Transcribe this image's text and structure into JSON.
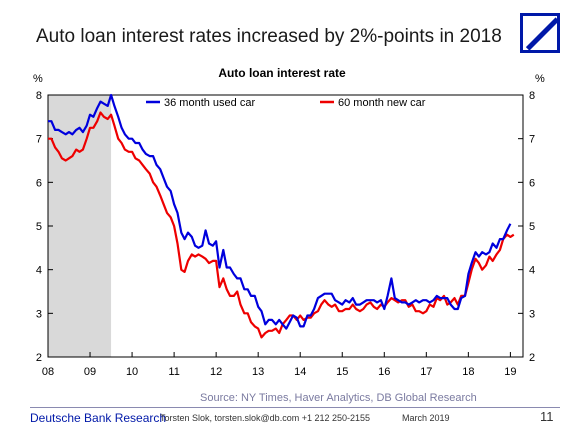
{
  "header": {
    "headline": "Auto loan interest rates increased by 2%-points in 2018",
    "logo": "deutsche-bank-logo"
  },
  "footer": {
    "source": "Source: NY Times, Haver Analytics, DB Global Research",
    "brand": "Deutsche Bank Research",
    "contact": "Torsten Slok, torsten.slok@db.com  +1 212 250-2155",
    "date": "March 2019",
    "page": "11"
  },
  "colors": {
    "series_36m": "#0000dd",
    "series_60m": "#ee0000",
    "shade": "#d9d9d9",
    "brand": "#0018a8"
  },
  "chart_data": {
    "type": "line",
    "title": "Auto loan interest rate",
    "left_unit": "%",
    "right_unit": "%",
    "xlim": [
      2008.0,
      2019.3
    ],
    "ylim": [
      2,
      8
    ],
    "yticks": [
      2,
      3,
      4,
      5,
      6,
      7,
      8
    ],
    "xticks": [
      {
        "value": 2008,
        "label": "08"
      },
      {
        "value": 2009,
        "label": "09"
      },
      {
        "value": 2010,
        "label": "10"
      },
      {
        "value": 2011,
        "label": "11"
      },
      {
        "value": 2012,
        "label": "12"
      },
      {
        "value": 2013,
        "label": "13"
      },
      {
        "value": 2014,
        "label": "14"
      },
      {
        "value": 2015,
        "label": "15"
      },
      {
        "value": 2016,
        "label": "16"
      },
      {
        "value": 2017,
        "label": "17"
      },
      {
        "value": 2018,
        "label": "18"
      },
      {
        "value": 2019,
        "label": "19"
      }
    ],
    "shaded_region": [
      2008.0,
      2009.5
    ],
    "grid": false,
    "legend": "top",
    "series": [
      {
        "name": "36 month used car",
        "color": "#0000dd",
        "points": [
          [
            2008.0,
            7.4
          ],
          [
            2008.08,
            7.4
          ],
          [
            2008.17,
            7.2
          ],
          [
            2008.25,
            7.2
          ],
          [
            2008.33,
            7.15
          ],
          [
            2008.42,
            7.1
          ],
          [
            2008.5,
            7.15
          ],
          [
            2008.58,
            7.1
          ],
          [
            2008.67,
            7.2
          ],
          [
            2008.75,
            7.25
          ],
          [
            2008.83,
            7.15
          ],
          [
            2008.92,
            7.3
          ],
          [
            2009.0,
            7.55
          ],
          [
            2009.08,
            7.5
          ],
          [
            2009.17,
            7.7
          ],
          [
            2009.25,
            7.85
          ],
          [
            2009.33,
            7.8
          ],
          [
            2009.42,
            7.75
          ],
          [
            2009.5,
            8.0
          ],
          [
            2009.58,
            7.75
          ],
          [
            2009.67,
            7.5
          ],
          [
            2009.75,
            7.25
          ],
          [
            2009.83,
            7.1
          ],
          [
            2009.92,
            7.0
          ],
          [
            2010.0,
            7.0
          ],
          [
            2010.08,
            6.9
          ],
          [
            2010.17,
            6.9
          ],
          [
            2010.25,
            6.75
          ],
          [
            2010.33,
            6.65
          ],
          [
            2010.42,
            6.6
          ],
          [
            2010.5,
            6.6
          ],
          [
            2010.58,
            6.4
          ],
          [
            2010.67,
            6.3
          ],
          [
            2010.75,
            6.1
          ],
          [
            2010.83,
            5.9
          ],
          [
            2010.92,
            5.8
          ],
          [
            2011.0,
            5.5
          ],
          [
            2011.08,
            5.3
          ],
          [
            2011.17,
            4.85
          ],
          [
            2011.25,
            4.7
          ],
          [
            2011.33,
            4.85
          ],
          [
            2011.42,
            4.75
          ],
          [
            2011.5,
            4.55
          ],
          [
            2011.58,
            4.5
          ],
          [
            2011.67,
            4.55
          ],
          [
            2011.75,
            4.9
          ],
          [
            2011.83,
            4.6
          ],
          [
            2011.92,
            4.55
          ],
          [
            2012.0,
            4.65
          ],
          [
            2012.08,
            4.05
          ],
          [
            2012.17,
            4.45
          ],
          [
            2012.25,
            4.05
          ],
          [
            2012.33,
            4.05
          ],
          [
            2012.42,
            3.9
          ],
          [
            2012.5,
            3.8
          ],
          [
            2012.58,
            3.8
          ],
          [
            2012.67,
            3.55
          ],
          [
            2012.75,
            3.55
          ],
          [
            2012.83,
            3.4
          ],
          [
            2012.92,
            3.4
          ],
          [
            2013.0,
            3.15
          ],
          [
            2013.08,
            3.05
          ],
          [
            2013.17,
            2.75
          ],
          [
            2013.25,
            2.85
          ],
          [
            2013.33,
            2.85
          ],
          [
            2013.42,
            2.75
          ],
          [
            2013.5,
            2.85
          ],
          [
            2013.58,
            2.75
          ],
          [
            2013.67,
            2.65
          ],
          [
            2013.75,
            2.8
          ],
          [
            2013.83,
            2.95
          ],
          [
            2013.92,
            2.9
          ],
          [
            2014.0,
            2.7
          ],
          [
            2014.08,
            2.7
          ],
          [
            2014.17,
            2.95
          ],
          [
            2014.25,
            2.95
          ],
          [
            2014.33,
            3.1
          ],
          [
            2014.42,
            3.35
          ],
          [
            2014.5,
            3.4
          ],
          [
            2014.58,
            3.45
          ],
          [
            2014.67,
            3.45
          ],
          [
            2014.75,
            3.45
          ],
          [
            2014.83,
            3.3
          ],
          [
            2014.92,
            3.25
          ],
          [
            2015.0,
            3.2
          ],
          [
            2015.08,
            3.3
          ],
          [
            2015.17,
            3.25
          ],
          [
            2015.25,
            3.35
          ],
          [
            2015.33,
            3.2
          ],
          [
            2015.42,
            3.2
          ],
          [
            2015.5,
            3.25
          ],
          [
            2015.58,
            3.3
          ],
          [
            2015.67,
            3.3
          ],
          [
            2015.75,
            3.3
          ],
          [
            2015.83,
            3.25
          ],
          [
            2015.92,
            3.3
          ],
          [
            2016.0,
            3.1
          ],
          [
            2016.08,
            3.4
          ],
          [
            2016.17,
            3.8
          ],
          [
            2016.25,
            3.35
          ],
          [
            2016.33,
            3.3
          ],
          [
            2016.42,
            3.25
          ],
          [
            2016.5,
            3.25
          ],
          [
            2016.58,
            3.2
          ],
          [
            2016.67,
            3.25
          ],
          [
            2016.75,
            3.3
          ],
          [
            2016.83,
            3.25
          ],
          [
            2016.92,
            3.3
          ],
          [
            2017.0,
            3.3
          ],
          [
            2017.08,
            3.25
          ],
          [
            2017.17,
            3.3
          ],
          [
            2017.25,
            3.4
          ],
          [
            2017.33,
            3.35
          ],
          [
            2017.42,
            3.35
          ],
          [
            2017.5,
            3.35
          ],
          [
            2017.58,
            3.2
          ],
          [
            2017.67,
            3.1
          ],
          [
            2017.75,
            3.1
          ],
          [
            2017.83,
            3.35
          ],
          [
            2017.92,
            3.4
          ],
          [
            2018.0,
            3.9
          ],
          [
            2018.08,
            4.15
          ],
          [
            2018.17,
            4.4
          ],
          [
            2018.25,
            4.3
          ],
          [
            2018.33,
            4.4
          ],
          [
            2018.42,
            4.35
          ],
          [
            2018.5,
            4.4
          ],
          [
            2018.58,
            4.6
          ],
          [
            2018.67,
            4.5
          ],
          [
            2018.75,
            4.7
          ],
          [
            2018.83,
            4.7
          ],
          [
            2018.92,
            4.9
          ],
          [
            2019.0,
            5.05
          ]
        ]
      },
      {
        "name": "60 month new car",
        "color": "#ee0000",
        "points": [
          [
            2008.0,
            7.0
          ],
          [
            2008.08,
            7.0
          ],
          [
            2008.17,
            6.8
          ],
          [
            2008.25,
            6.7
          ],
          [
            2008.33,
            6.55
          ],
          [
            2008.42,
            6.5
          ],
          [
            2008.5,
            6.55
          ],
          [
            2008.58,
            6.6
          ],
          [
            2008.67,
            6.75
          ],
          [
            2008.75,
            6.7
          ],
          [
            2008.83,
            6.75
          ],
          [
            2008.92,
            7.0
          ],
          [
            2009.0,
            7.25
          ],
          [
            2009.08,
            7.25
          ],
          [
            2009.17,
            7.4
          ],
          [
            2009.25,
            7.6
          ],
          [
            2009.33,
            7.5
          ],
          [
            2009.42,
            7.45
          ],
          [
            2009.5,
            7.55
          ],
          [
            2009.58,
            7.3
          ],
          [
            2009.67,
            7.0
          ],
          [
            2009.75,
            6.9
          ],
          [
            2009.83,
            6.75
          ],
          [
            2009.92,
            6.7
          ],
          [
            2010.0,
            6.7
          ],
          [
            2010.08,
            6.55
          ],
          [
            2010.17,
            6.5
          ],
          [
            2010.25,
            6.4
          ],
          [
            2010.33,
            6.3
          ],
          [
            2010.42,
            6.2
          ],
          [
            2010.5,
            6.0
          ],
          [
            2010.58,
            5.9
          ],
          [
            2010.67,
            5.7
          ],
          [
            2010.75,
            5.5
          ],
          [
            2010.83,
            5.3
          ],
          [
            2010.92,
            5.2
          ],
          [
            2011.0,
            5.0
          ],
          [
            2011.08,
            4.6
          ],
          [
            2011.17,
            4.0
          ],
          [
            2011.25,
            3.95
          ],
          [
            2011.33,
            4.2
          ],
          [
            2011.42,
            4.35
          ],
          [
            2011.5,
            4.3
          ],
          [
            2011.58,
            4.35
          ],
          [
            2011.67,
            4.3
          ],
          [
            2011.75,
            4.25
          ],
          [
            2011.83,
            4.15
          ],
          [
            2011.92,
            4.2
          ],
          [
            2012.0,
            4.2
          ],
          [
            2012.08,
            3.6
          ],
          [
            2012.17,
            3.8
          ],
          [
            2012.25,
            3.55
          ],
          [
            2012.33,
            3.4
          ],
          [
            2012.42,
            3.4
          ],
          [
            2012.5,
            3.5
          ],
          [
            2012.58,
            3.2
          ],
          [
            2012.67,
            3.0
          ],
          [
            2012.75,
            3.0
          ],
          [
            2012.83,
            2.8
          ],
          [
            2012.92,
            2.7
          ],
          [
            2013.0,
            2.65
          ],
          [
            2013.08,
            2.45
          ],
          [
            2013.17,
            2.55
          ],
          [
            2013.25,
            2.6
          ],
          [
            2013.33,
            2.6
          ],
          [
            2013.42,
            2.65
          ],
          [
            2013.5,
            2.55
          ],
          [
            2013.58,
            2.75
          ],
          [
            2013.67,
            2.85
          ],
          [
            2013.75,
            2.95
          ],
          [
            2013.83,
            2.95
          ],
          [
            2013.92,
            2.85
          ],
          [
            2014.0,
            2.95
          ],
          [
            2014.08,
            2.85
          ],
          [
            2014.17,
            2.9
          ],
          [
            2014.25,
            2.9
          ],
          [
            2014.33,
            3.0
          ],
          [
            2014.42,
            3.05
          ],
          [
            2014.5,
            3.2
          ],
          [
            2014.58,
            3.3
          ],
          [
            2014.67,
            3.2
          ],
          [
            2014.75,
            3.15
          ],
          [
            2014.83,
            3.2
          ],
          [
            2014.92,
            3.05
          ],
          [
            2015.0,
            3.05
          ],
          [
            2015.08,
            3.1
          ],
          [
            2015.17,
            3.1
          ],
          [
            2015.25,
            3.2
          ],
          [
            2015.33,
            3.1
          ],
          [
            2015.42,
            3.05
          ],
          [
            2015.5,
            3.1
          ],
          [
            2015.58,
            3.2
          ],
          [
            2015.67,
            3.25
          ],
          [
            2015.75,
            3.15
          ],
          [
            2015.83,
            3.1
          ],
          [
            2015.92,
            3.2
          ],
          [
            2016.0,
            3.15
          ],
          [
            2016.08,
            3.25
          ],
          [
            2016.17,
            3.35
          ],
          [
            2016.25,
            3.3
          ],
          [
            2016.33,
            3.25
          ],
          [
            2016.42,
            3.3
          ],
          [
            2016.5,
            3.3
          ],
          [
            2016.58,
            3.15
          ],
          [
            2016.67,
            3.2
          ],
          [
            2016.75,
            3.05
          ],
          [
            2016.83,
            3.05
          ],
          [
            2016.92,
            3.0
          ],
          [
            2017.0,
            3.05
          ],
          [
            2017.08,
            3.2
          ],
          [
            2017.17,
            3.15
          ],
          [
            2017.25,
            3.35
          ],
          [
            2017.33,
            3.3
          ],
          [
            2017.42,
            3.4
          ],
          [
            2017.5,
            3.2
          ],
          [
            2017.58,
            3.25
          ],
          [
            2017.67,
            3.35
          ],
          [
            2017.75,
            3.2
          ],
          [
            2017.83,
            3.4
          ],
          [
            2017.92,
            3.4
          ],
          [
            2018.0,
            3.7
          ],
          [
            2018.08,
            4.0
          ],
          [
            2018.17,
            4.25
          ],
          [
            2018.25,
            4.15
          ],
          [
            2018.33,
            4.0
          ],
          [
            2018.42,
            4.1
          ],
          [
            2018.5,
            4.3
          ],
          [
            2018.58,
            4.2
          ],
          [
            2018.67,
            4.35
          ],
          [
            2018.75,
            4.45
          ],
          [
            2018.83,
            4.7
          ],
          [
            2018.92,
            4.8
          ],
          [
            2019.0,
            4.75
          ],
          [
            2019.08,
            4.8
          ]
        ]
      }
    ]
  }
}
